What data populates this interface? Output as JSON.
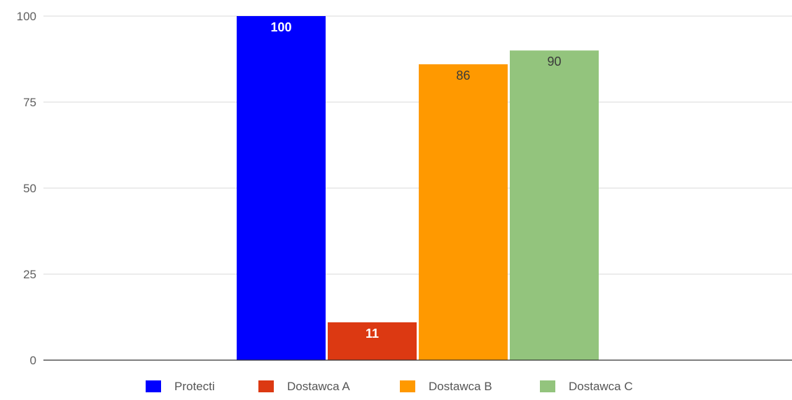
{
  "chart_data": {
    "type": "bar",
    "categories": [
      ""
    ],
    "series": [
      {
        "name": "Protecti",
        "values": [
          100
        ],
        "color": "#0000ff",
        "label_color": "#ffffff"
      },
      {
        "name": "Dostawca A",
        "values": [
          11
        ],
        "color": "#dc3912",
        "label_color": "#ffffff"
      },
      {
        "name": "Dostawca B",
        "values": [
          86
        ],
        "color": "#ff9900",
        "label_color": "#3a3a3a"
      },
      {
        "name": "Dostawca C",
        "values": [
          90
        ],
        "color": "#93c47d",
        "label_color": "#3a3a3a"
      }
    ],
    "title": "",
    "xlabel": "",
    "ylabel": "",
    "ylim": [
      0,
      100
    ],
    "yticks": [
      0,
      25,
      50,
      75,
      100
    ],
    "grid": true,
    "legend_position": "bottom"
  }
}
